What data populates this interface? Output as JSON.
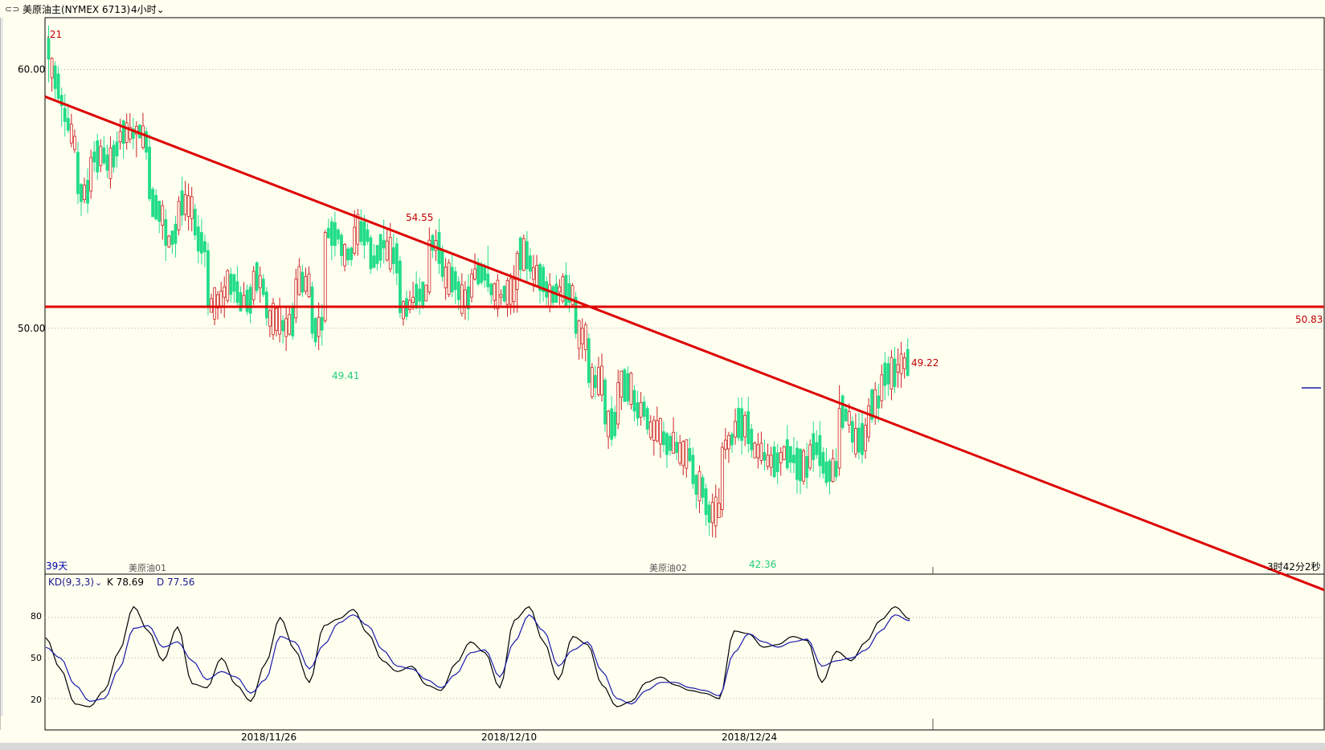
{
  "header": {
    "symbol": "美原油主(NYMEX 6713)",
    "period_label": "4小时",
    "link_icon": "link-icon",
    "dropdown_icon": "chevron-down-icon"
  },
  "price_axis": {
    "ticks": [
      "60.00",
      "50.00"
    ]
  },
  "indicator": {
    "name": "KD(9,3,3)",
    "k_label": "K 78.69",
    "d_label": "D 77.56",
    "ticks": [
      "80",
      "50",
      "20"
    ]
  },
  "labels": {
    "days": "39天",
    "contract1": "美原油01",
    "contract2": "美原油02",
    "countdown": "3时42分2秒",
    "high_start": ".21",
    "peak1": "54.55",
    "low1": "49.41",
    "low2": "42.36",
    "last_high": "49.22",
    "hline_value": "50.83"
  },
  "date_labels": [
    "2018/11/26",
    "2018/12/10",
    "2018/12/24"
  ],
  "colors": {
    "up": "#cc2222",
    "down": "#22dd88",
    "trendline": "#dd0000",
    "k_line": "#000000",
    "d_line": "#1a1aaa"
  },
  "chart_data": {
    "type": "candlestick",
    "ylim": [
      40.5,
      62.0
    ],
    "hline": 50.83,
    "trendline": {
      "from_price": 58.95,
      "to_price": 46.1,
      "span_bars": 265
    },
    "ohlc_anchors": [
      [
        61.2,
        61.7,
        59.5,
        60.4
      ],
      [
        59.0,
        59.3,
        57.8,
        58.6
      ],
      [
        56.8,
        57.2,
        54.8,
        55.2
      ],
      [
        55.3,
        56.9,
        55.0,
        56.6
      ],
      [
        56.7,
        57.1,
        55.8,
        56.1
      ],
      [
        57.2,
        58.1,
        56.9,
        57.6
      ],
      [
        57.5,
        58.0,
        56.6,
        57.8
      ],
      [
        57.0,
        57.5,
        54.9,
        55.0
      ],
      [
        54.2,
        54.6,
        52.6,
        53.2
      ],
      [
        53.8,
        55.1,
        53.6,
        54.9
      ],
      [
        54.6,
        54.8,
        53.4,
        53.6
      ],
      [
        53.0,
        53.3,
        50.5,
        50.8
      ],
      [
        51.2,
        52.0,
        50.4,
        51.6
      ],
      [
        51.8,
        52.4,
        50.8,
        51.0
      ],
      [
        51.1,
        52.4,
        50.9,
        52.2
      ],
      [
        51.4,
        51.6,
        50.1,
        50.4
      ],
      [
        50.3,
        50.5,
        49.41,
        49.9
      ],
      [
        50.4,
        52.3,
        50.2,
        51.9
      ],
      [
        51.6,
        51.8,
        49.6,
        49.8
      ],
      [
        50.3,
        53.8,
        50.2,
        53.7
      ],
      [
        53.6,
        53.7,
        52.4,
        52.8
      ],
      [
        52.9,
        54.55,
        52.8,
        53.9
      ],
      [
        53.5,
        53.6,
        52.1,
        52.3
      ],
      [
        53.4,
        54.2,
        52.5,
        53.1
      ],
      [
        52.6,
        52.8,
        50.4,
        50.6
      ],
      [
        51.0,
        51.8,
        50.7,
        51.2
      ],
      [
        51.4,
        53.9,
        51.3,
        53.4
      ],
      [
        53.0,
        53.2,
        51.8,
        52.0
      ],
      [
        51.8,
        52.0,
        50.7,
        51.1
      ],
      [
        51.2,
        52.3,
        51.0,
        52.1
      ],
      [
        52.1,
        53.2,
        51.4,
        51.6
      ],
      [
        51.2,
        51.5,
        50.9,
        51.3
      ],
      [
        51.5,
        53.0,
        50.6,
        52.9
      ],
      [
        52.8,
        53.1,
        51.9,
        52.2
      ],
      [
        51.8,
        52.0,
        50.9,
        51.2
      ],
      [
        51.4,
        51.9,
        50.9,
        51.6
      ],
      [
        51.2,
        51.4,
        49.6,
        49.8
      ],
      [
        49.6,
        49.8,
        47.7,
        47.9
      ],
      [
        48.0,
        48.1,
        46.0,
        46.3
      ],
      [
        46.3,
        48.4,
        46.1,
        47.9
      ],
      [
        47.6,
        47.8,
        46.4,
        46.8
      ],
      [
        46.9,
        47.0,
        45.9,
        46.1
      ],
      [
        46.0,
        46.4,
        45.2,
        45.5
      ],
      [
        45.6,
        46.0,
        44.9,
        45.2
      ],
      [
        45.1,
        45.4,
        43.8,
        44.0
      ],
      [
        43.8,
        44.0,
        42.36,
        42.8
      ],
      [
        43.0,
        45.6,
        42.7,
        45.4
      ],
      [
        45.8,
        46.9,
        45.5,
        46.4
      ],
      [
        46.1,
        46.3,
        45.0,
        45.3
      ],
      [
        45.2,
        45.7,
        44.5,
        44.9
      ],
      [
        44.8,
        45.4,
        44.3,
        45.2
      ],
      [
        45.1,
        45.8,
        44.4,
        44.8
      ],
      [
        44.6,
        45.7,
        44.5,
        45.5
      ],
      [
        45.2,
        45.4,
        44.2,
        44.4
      ],
      [
        44.6,
        47.8,
        44.3,
        46.9
      ],
      [
        46.4,
        46.6,
        45.2,
        45.6
      ],
      [
        45.8,
        47.3,
        45.6,
        47.0
      ],
      [
        47.2,
        48.6,
        46.9,
        48.2
      ],
      [
        48.3,
        49.22,
        47.7,
        48.6
      ],
      [
        48.7,
        49.1,
        48.4,
        48.8
      ]
    ],
    "kd": {
      "k_anchors": [
        65,
        42,
        16,
        14,
        26,
        55,
        88,
        70,
        48,
        73,
        31,
        28,
        50,
        30,
        18,
        46,
        80,
        56,
        32,
        74,
        79,
        86,
        68,
        48,
        40,
        44,
        30,
        26,
        46,
        62,
        54,
        28,
        78,
        88,
        62,
        34,
        66,
        60,
        30,
        14,
        18,
        32,
        36,
        30,
        26,
        24,
        20,
        70,
        68,
        58,
        60,
        66,
        63,
        32,
        55,
        48,
        62,
        78,
        88,
        78.69
      ],
      "d_anchors": [
        58,
        50,
        30,
        18,
        20,
        42,
        72,
        74,
        58,
        62,
        48,
        34,
        40,
        36,
        24,
        34,
        66,
        62,
        42,
        60,
        76,
        82,
        74,
        56,
        44,
        42,
        34,
        28,
        38,
        54,
        56,
        36,
        62,
        82,
        70,
        44,
        56,
        62,
        40,
        20,
        16,
        26,
        32,
        32,
        28,
        26,
        22,
        54,
        68,
        62,
        58,
        62,
        64,
        44,
        48,
        50,
        56,
        70,
        82,
        77.56
      ]
    }
  }
}
